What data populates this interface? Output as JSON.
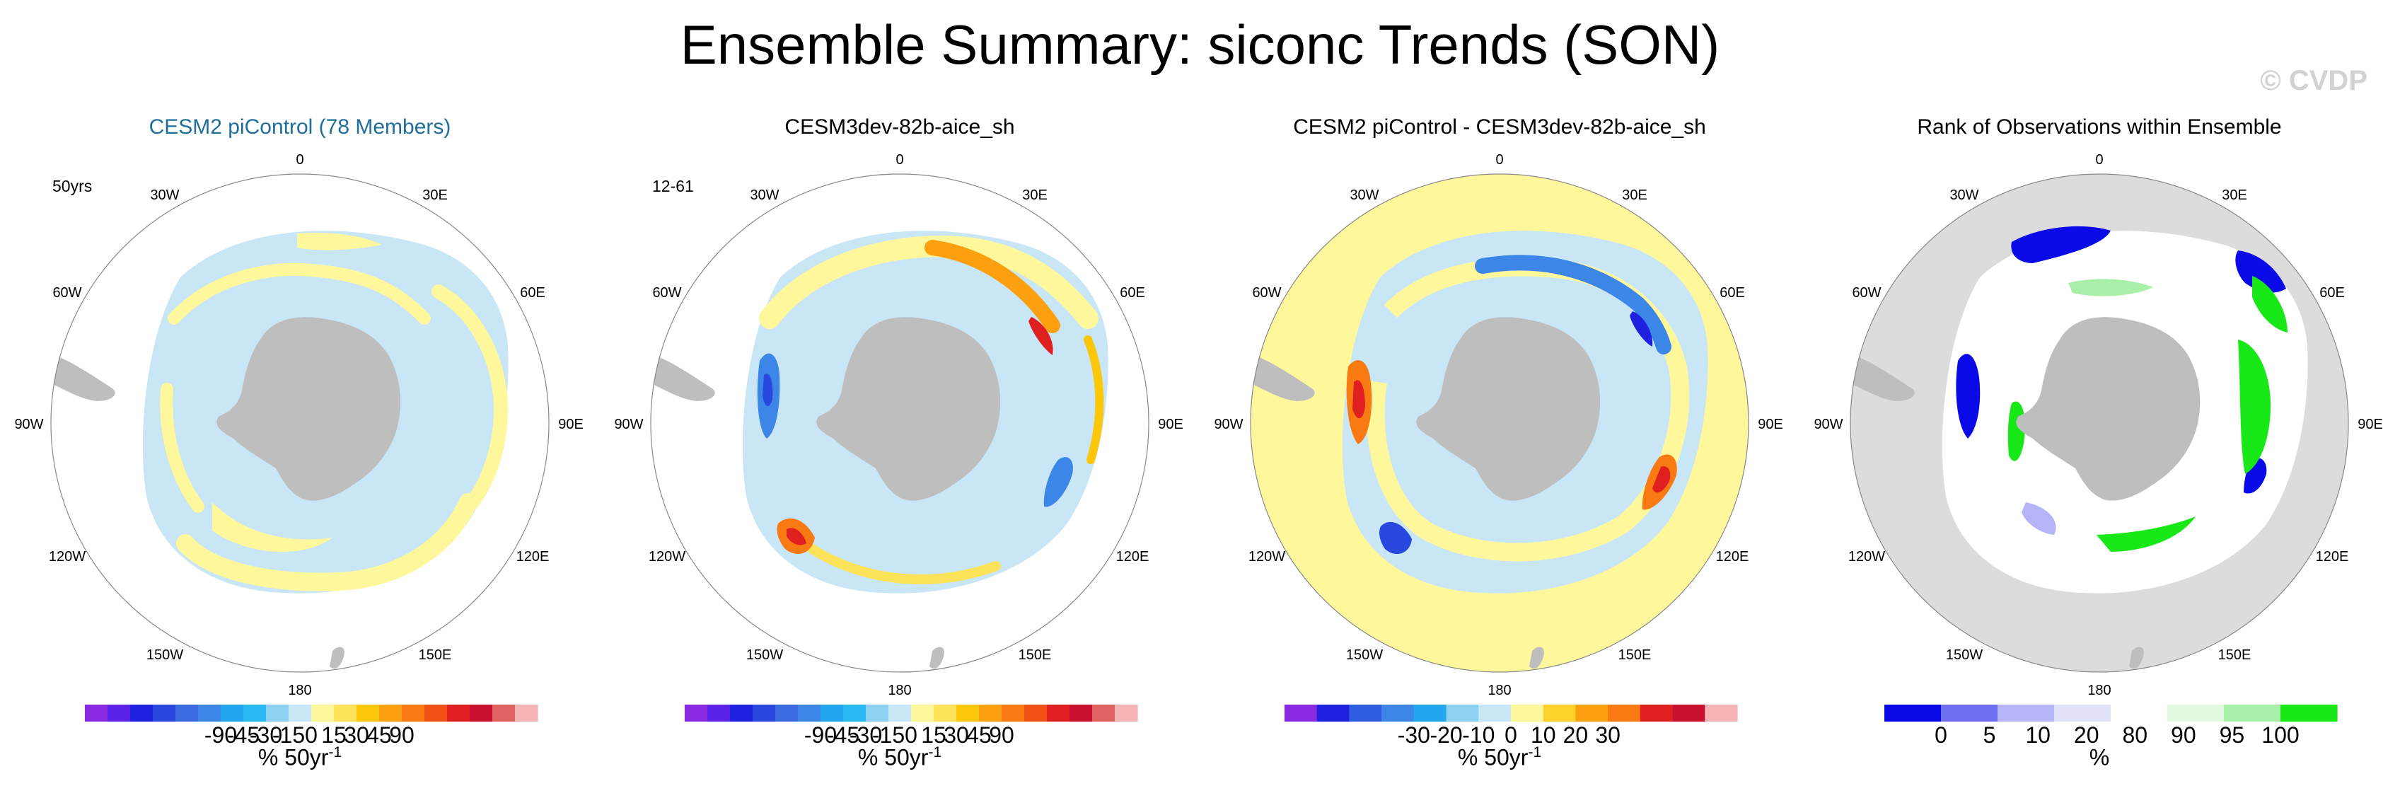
{
  "title": "Ensemble Summary: siconc Trends (SON)",
  "credit": "© CVDP",
  "colors": {
    "land": "#bebebe",
    "title_blue": "#1f6f9a",
    "pale_yellow": "#fff79c",
    "pale_blue": "#c9e6f6",
    "rank_gray": "#dcdcdc"
  },
  "longitude_labels": [
    "0",
    "30E",
    "60E",
    "90E",
    "120E",
    "150E",
    "180",
    "150W",
    "120W",
    "90W",
    "60W",
    "30W"
  ],
  "panels": [
    {
      "title": "CESM2 piControl (78 Members)",
      "corner_label": "50yrs",
      "colorbar_ticks": [
        "-90",
        "-45",
        "-30",
        "-15",
        "0",
        "15",
        "30",
        "45",
        "90"
      ],
      "colorbar_colors": [
        "#8a2be2",
        "#5b21e6",
        "#2020e0",
        "#2848e0",
        "#3c6ae0",
        "#3c86e8",
        "#22a6f0",
        "#2ab8f4",
        "#8ed0f0",
        "#c9e6f6",
        "#fff79c",
        "#fce35a",
        "#fcc60a",
        "#fca010",
        "#f97a12",
        "#f24f14",
        "#e02020",
        "#c8102e",
        "#e06262",
        "#f6b4b4"
      ],
      "unit_main": "% 50yr",
      "unit_sup": "-1"
    },
    {
      "title": "CESM3dev-82b-aice_sh",
      "corner_label": "12-61",
      "colorbar_ticks": [
        "-90",
        "-45",
        "-30",
        "-15",
        "0",
        "15",
        "30",
        "45",
        "90"
      ],
      "colorbar_colors": [
        "#8a2be2",
        "#5b21e6",
        "#2020e0",
        "#2848e0",
        "#3c6ae0",
        "#3c86e8",
        "#22a6f0",
        "#2ab8f4",
        "#8ed0f0",
        "#c9e6f6",
        "#fff79c",
        "#fce35a",
        "#fcc60a",
        "#fca010",
        "#f97a12",
        "#f24f14",
        "#e02020",
        "#c8102e",
        "#e06262",
        "#f6b4b4"
      ],
      "unit_main": "% 50yr",
      "unit_sup": "-1"
    },
    {
      "title": "CESM2 piControl - CESM3dev-82b-aice_sh",
      "corner_label": "",
      "colorbar_ticks": [
        "-30",
        "-20",
        "-10",
        "0",
        "10",
        "20",
        "30"
      ],
      "colorbar_colors": [
        "#8a2be2",
        "#2020e0",
        "#2f5ce0",
        "#3c86e8",
        "#22a6f0",
        "#8ed0f0",
        "#c9e6f6",
        "#fff79c",
        "#fcd22a",
        "#fca010",
        "#f97a12",
        "#e02020",
        "#c8102e",
        "#f6b4b4"
      ],
      "unit_main": "% 50yr",
      "unit_sup": "-1"
    },
    {
      "title": "Rank of Observations within Ensemble",
      "corner_label": "",
      "colorbar_ticks": [
        "0",
        "5",
        "10",
        "20",
        "80",
        "90",
        "95",
        "100"
      ],
      "colorbar_colors": [
        "#0a0ae8",
        "#6e6ef0",
        "#b4b4f6",
        "#e1e1fa",
        "#ffffff",
        "#e1fae1",
        "#a8f0a8",
        "#18e818"
      ],
      "unit_main": "%",
      "unit_sup": ""
    }
  ],
  "chart_data": [
    {
      "type": "heatmap",
      "title": "CESM2 piControl (78 Members)",
      "annotation": "50yrs",
      "projection": "south polar stereographic",
      "legend_placement": "bottom",
      "colorbar_ticks": [
        -90,
        -45,
        -30,
        -15,
        0,
        15,
        30,
        45,
        90
      ],
      "unit": "% 50yr-1"
    },
    {
      "type": "heatmap",
      "title": "CESM3dev-82b-aice_sh",
      "annotation": "12-61",
      "projection": "south polar stereographic",
      "legend_placement": "bottom",
      "colorbar_ticks": [
        -90,
        -45,
        -30,
        -15,
        0,
        15,
        30,
        45,
        90
      ],
      "unit": "% 50yr-1"
    },
    {
      "type": "heatmap",
      "title": "CESM2 piControl - CESM3dev-82b-aice_sh",
      "projection": "south polar stereographic",
      "legend_placement": "bottom",
      "colorbar_ticks": [
        -30,
        -20,
        -10,
        0,
        10,
        20,
        30
      ],
      "unit": "% 50yr-1"
    },
    {
      "type": "heatmap",
      "title": "Rank of Observations within Ensemble",
      "projection": "south polar stereographic",
      "legend_placement": "bottom",
      "colorbar_ticks": [
        0,
        5,
        10,
        20,
        80,
        90,
        95,
        100
      ],
      "unit": "%"
    }
  ]
}
